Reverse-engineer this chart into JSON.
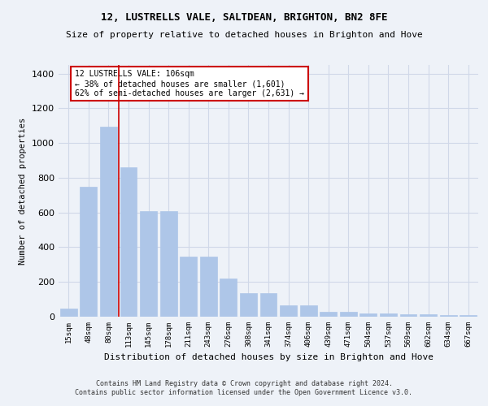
{
  "title1": "12, LUSTRELLS VALE, SALTDEAN, BRIGHTON, BN2 8FE",
  "title2": "Size of property relative to detached houses in Brighton and Hove",
  "xlabel": "Distribution of detached houses by size in Brighton and Hove",
  "ylabel": "Number of detached properties",
  "footer1": "Contains HM Land Registry data © Crown copyright and database right 2024.",
  "footer2": "Contains public sector information licensed under the Open Government Licence v3.0.",
  "categories": [
    "15sqm",
    "48sqm",
    "80sqm",
    "113sqm",
    "145sqm",
    "178sqm",
    "211sqm",
    "243sqm",
    "276sqm",
    "308sqm",
    "341sqm",
    "374sqm",
    "406sqm",
    "439sqm",
    "471sqm",
    "504sqm",
    "537sqm",
    "569sqm",
    "602sqm",
    "634sqm",
    "667sqm"
  ],
  "values": [
    48,
    750,
    1095,
    860,
    610,
    610,
    345,
    345,
    220,
    135,
    135,
    65,
    65,
    28,
    28,
    20,
    20,
    13,
    13,
    10,
    10
  ],
  "bar_color": "#aec6e8",
  "bar_edge_color": "#aec6e8",
  "grid_color": "#d0d8e8",
  "background_color": "#eef2f8",
  "red_line_x": 2.5,
  "annotation_text": "12 LUSTRELLS VALE: 106sqm\n← 38% of detached houses are smaller (1,601)\n62% of semi-detached houses are larger (2,631) →",
  "annotation_box_color": "#ffffff",
  "annotation_border_color": "#cc0000",
  "ylim": [
    0,
    1450
  ],
  "yticks": [
    0,
    200,
    400,
    600,
    800,
    1000,
    1200,
    1400
  ]
}
